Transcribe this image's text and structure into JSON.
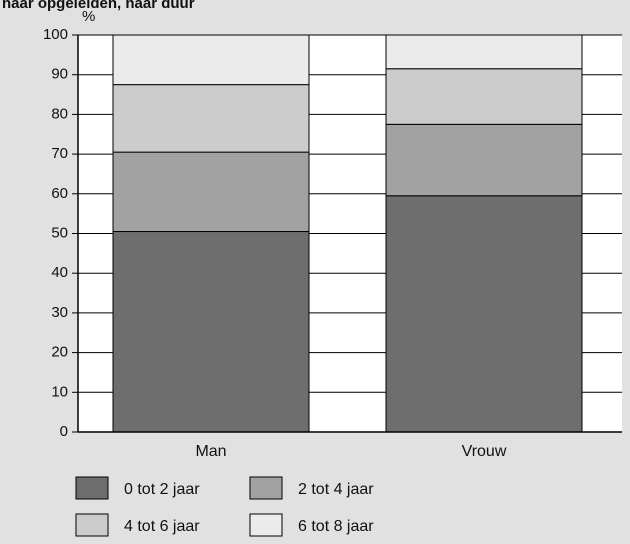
{
  "header_text": "naar opgeleiden, naar duur",
  "colors": {
    "background": "#e1e1e1",
    "plot_background": "#ffffff",
    "segment_0_2": "#6e6e6e",
    "segment_2_4": "#a2a2a2",
    "segment_4_6": "#cccccc",
    "segment_6_8": "#ebebeb",
    "line": "#000000"
  },
  "chart_data": {
    "type": "bar",
    "stacked": true,
    "title": "",
    "xlabel": "",
    "ylabel": "%",
    "ylim": [
      0,
      100
    ],
    "yticks": [
      0,
      10,
      20,
      30,
      40,
      50,
      60,
      70,
      80,
      90,
      100
    ],
    "grid": true,
    "legend_position": "bottom",
    "categories": [
      "Man",
      "Vrouw"
    ],
    "series": [
      {
        "name": "0 tot 2 jaar",
        "values": [
          50.5,
          59.5
        ]
      },
      {
        "name": "2 tot 4 jaar",
        "values": [
          20.0,
          18.0
        ]
      },
      {
        "name": "4 tot 6 jaar",
        "values": [
          17.0,
          14.0
        ]
      },
      {
        "name": "6 tot 8 jaar",
        "values": [
          12.5,
          8.5
        ]
      }
    ]
  }
}
